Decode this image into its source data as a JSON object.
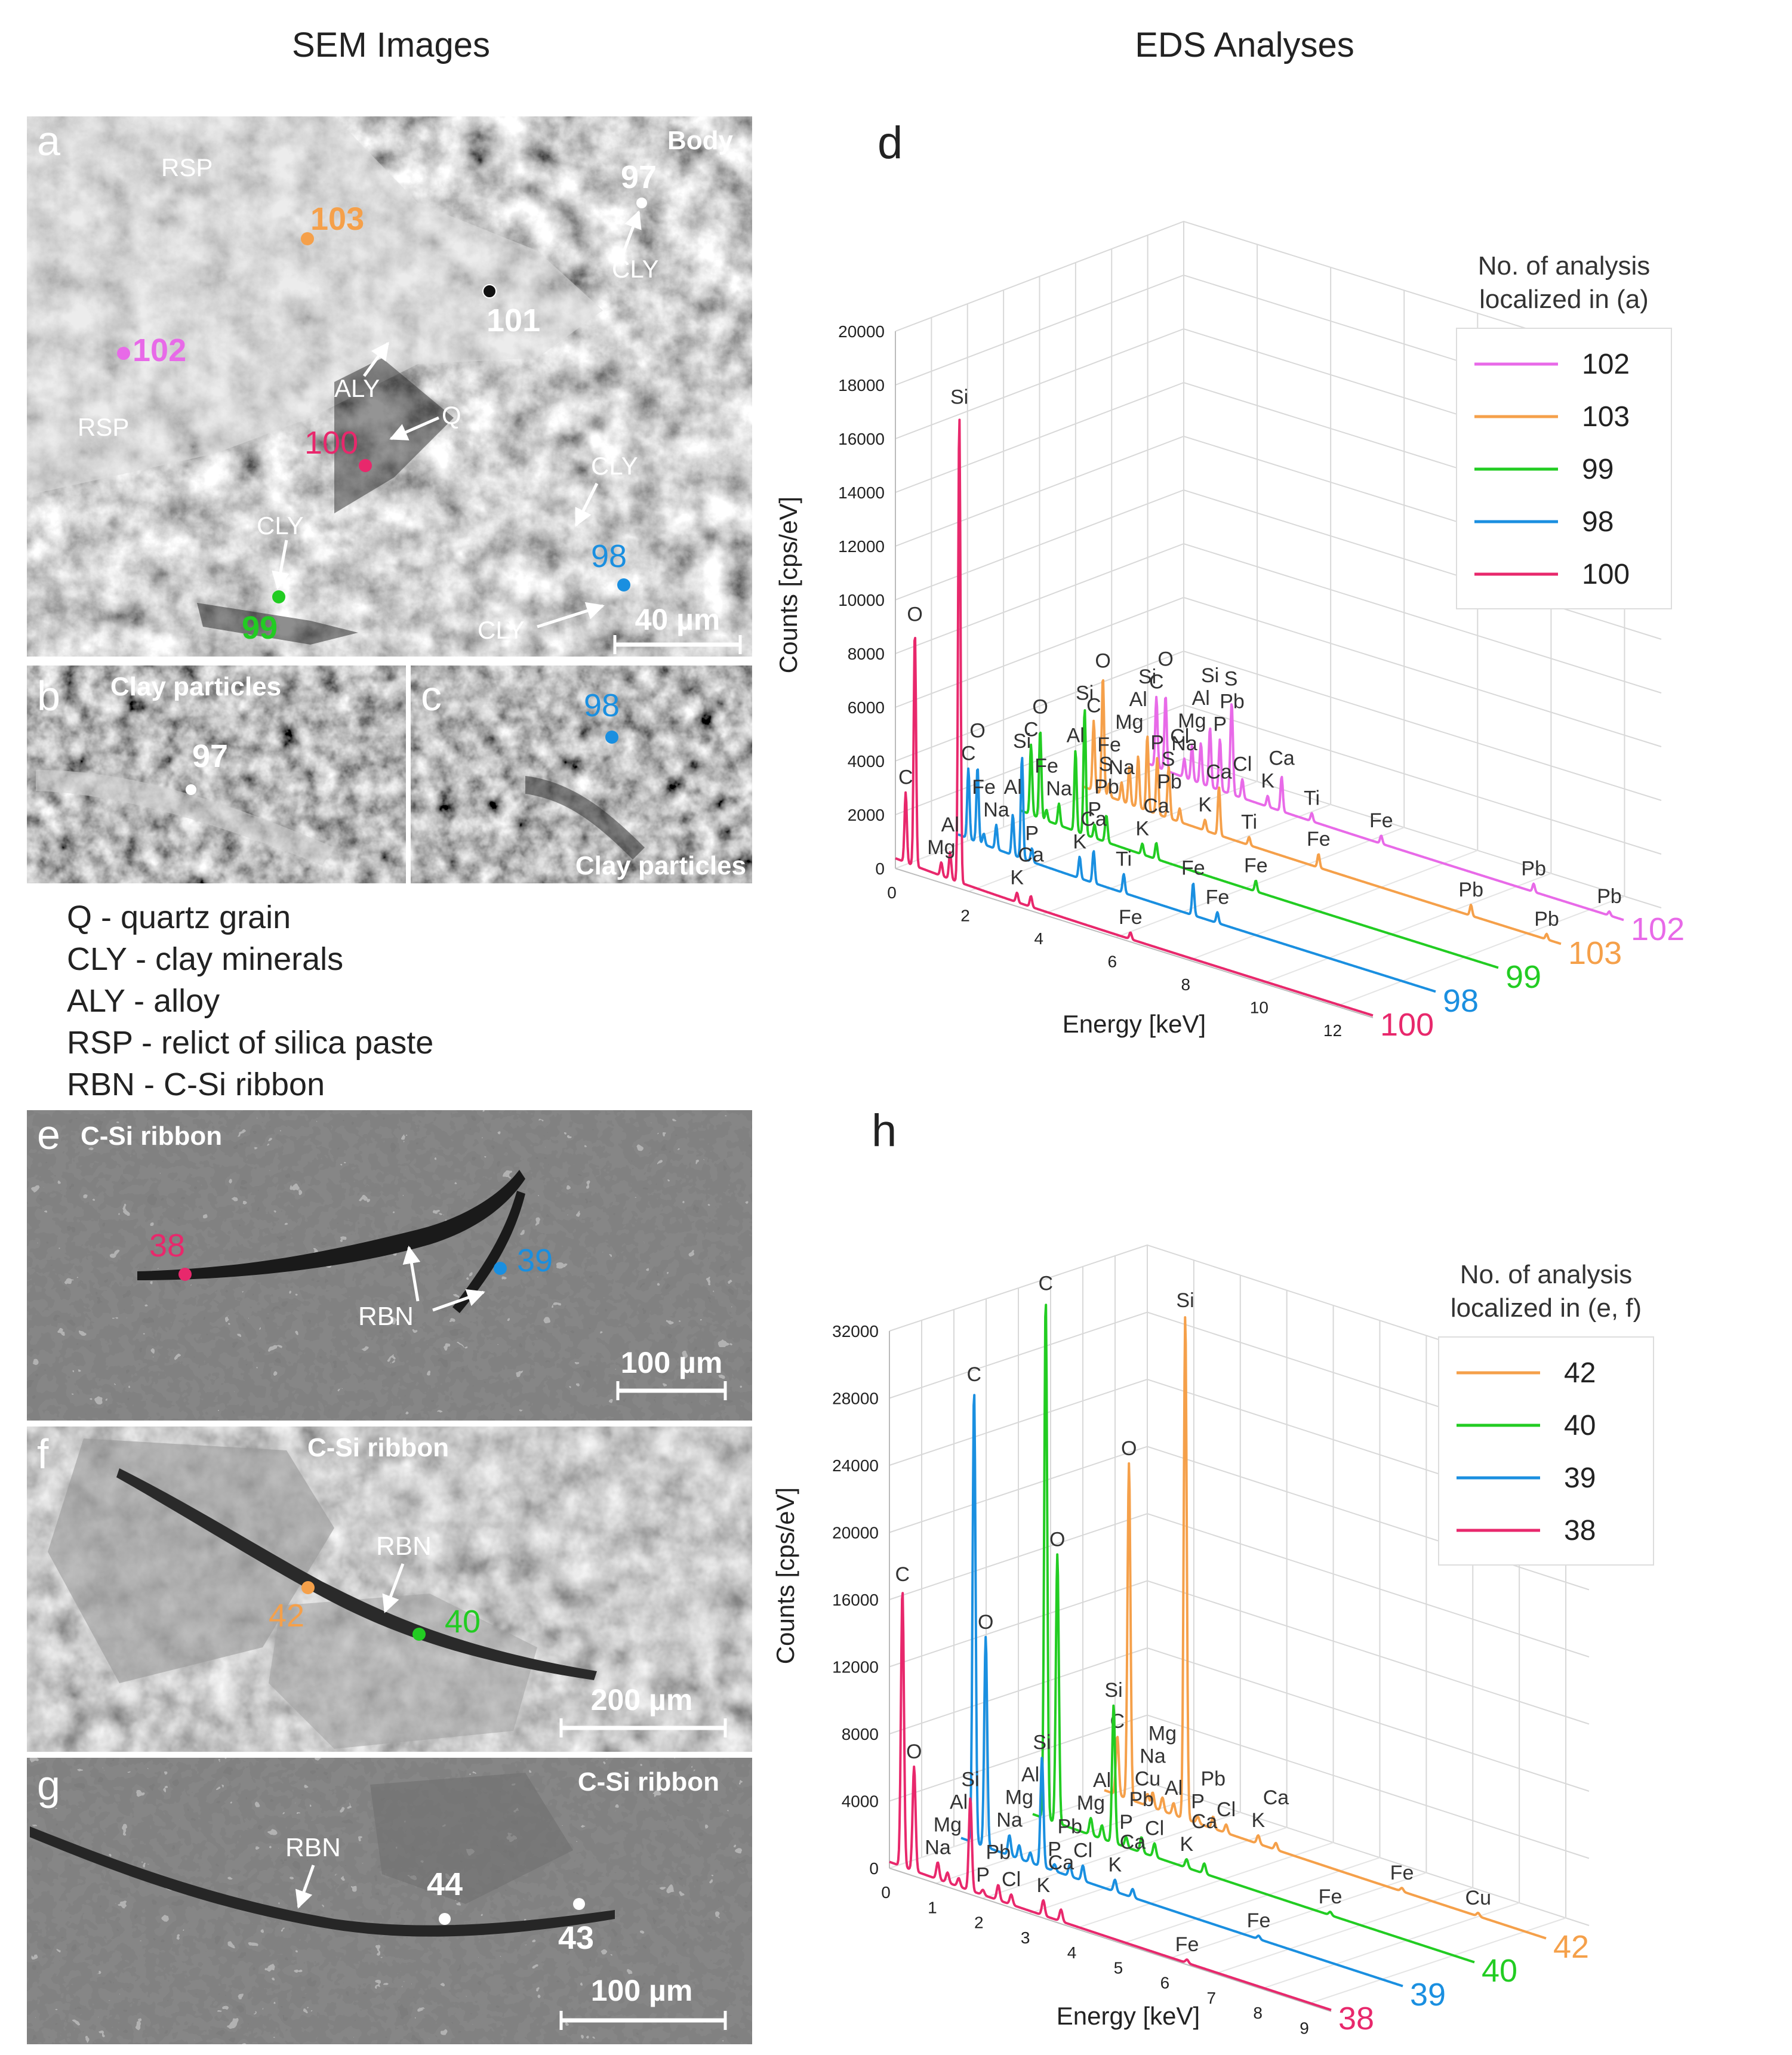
{
  "headings": {
    "sem": "SEM Images",
    "eds": "EDS Analyses"
  },
  "colors": {
    "s102": "#e86ae8",
    "s103": "#f5a04a",
    "s99": "#22cc22",
    "s98": "#1a8fe0",
    "s100": "#e8286c",
    "s42": "#f5a04a",
    "s40": "#22cc22",
    "s39": "#1a8fe0",
    "s38": "#e8286c",
    "pt_white": "#ffffff"
  },
  "panels": {
    "a": {
      "letter": "a",
      "title": "Body",
      "scale": "40 µm",
      "labels": {
        "rsp1": "RSP",
        "rsp2": "RSP",
        "aly": "ALY",
        "q": "Q",
        "cly1": "CLY",
        "cly2": "CLY",
        "cly3": "CLY",
        "cly4": "CLY"
      },
      "points": {
        "p103": "103",
        "p97": "97",
        "p101": "101",
        "p102": "102",
        "p100": "100",
        "p98": "98",
        "p99": "99"
      }
    },
    "b": {
      "letter": "b",
      "title": "Clay particles",
      "point": "97"
    },
    "c": {
      "letter": "c",
      "title": "Clay particles",
      "point": "98"
    },
    "e": {
      "letter": "e",
      "title": "C-Si ribbon",
      "scale": "100 µm",
      "rbn": "RBN",
      "p38": "38",
      "p39": "39"
    },
    "f": {
      "letter": "f",
      "title": "C-Si ribbon",
      "scale": "200 µm",
      "rbn": "RBN",
      "p42": "42",
      "p40": "40"
    },
    "g": {
      "letter": "g",
      "title": "C-Si ribbon",
      "scale": "100 µm",
      "rbn": "RBN",
      "p44": "44",
      "p43": "43"
    }
  },
  "abbreviations": [
    "Q - quartz grain",
    "CLY - clay minerals",
    "ALY - alloy",
    "RSP - relict of silica paste",
    "RBN - C-Si ribbon"
  ],
  "chart_data": [
    {
      "panel": "d",
      "type": "line",
      "title": "d",
      "xlabel": "Energy [keV]",
      "ylabel": "Counts [cps/eV]",
      "xlim": [
        0,
        13
      ],
      "ylim": [
        0,
        20000
      ],
      "x_ticks": [
        "0",
        "2",
        "4",
        "6",
        "8",
        "10",
        "12"
      ],
      "y_ticks": [
        "0",
        "2000",
        "4000",
        "6000",
        "8000",
        "10000",
        "12000",
        "14000",
        "16000",
        "18000",
        "20000"
      ],
      "legend_title": "No. of  analysis localized in (a)",
      "legend": [
        "102",
        "103",
        "99",
        "98",
        "100"
      ],
      "series": [
        {
          "name": "100",
          "color": "#e8286c",
          "peaks": [
            {
              "el": "C",
              "e": 0.28,
              "v": 2600
            },
            {
              "el": "O",
              "e": 0.53,
              "v": 8800
            },
            {
              "el": "Mg",
              "e": 1.25,
              "v": 500
            },
            {
              "el": "Al",
              "e": 1.49,
              "v": 1000
            },
            {
              "el": "Si",
              "e": 1.74,
              "v": 17500
            },
            {
              "el": "K",
              "e": 3.31,
              "v": 350
            },
            {
              "el": "Ca",
              "e": 3.69,
              "v": 400
            },
            {
              "el": "Fe",
              "e": 6.4,
              "v": 250
            }
          ]
        },
        {
          "name": "98",
          "color": "#1a8fe0",
          "peaks": [
            {
              "el": "C",
              "e": 0.28,
              "v": 2600
            },
            {
              "el": "O",
              "e": 0.53,
              "v": 2800
            },
            {
              "el": "Na",
              "e": 1.04,
              "v": 900
            },
            {
              "el": "Fe",
              "e": 0.7,
              "v": 400
            },
            {
              "el": "Al",
              "e": 1.49,
              "v": 1500
            },
            {
              "el": "Si",
              "e": 1.74,
              "v": 3800
            },
            {
              "el": "P",
              "e": 2.01,
              "v": 500
            },
            {
              "el": "K",
              "e": 3.31,
              "v": 800
            },
            {
              "el": "Ca",
              "e": 3.69,
              "v": 1200
            },
            {
              "el": "Ti",
              "e": 4.51,
              "v": 700
            },
            {
              "el": "Fe",
              "e": 6.4,
              "v": 1200
            },
            {
              "el": "Fe",
              "e": 7.06,
              "v": 400
            }
          ]
        },
        {
          "name": "99",
          "color": "#22cc22",
          "peaks": [
            {
              "el": "C",
              "e": 0.28,
              "v": 2600
            },
            {
              "el": "O",
              "e": 0.53,
              "v": 3300
            },
            {
              "el": "Na",
              "e": 1.04,
              "v": 800
            },
            {
              "el": "Fe",
              "e": 0.7,
              "v": 400
            },
            {
              "el": "Al",
              "e": 1.49,
              "v": 3000
            },
            {
              "el": "Si",
              "e": 1.74,
              "v": 4700
            },
            {
              "el": "P",
              "e": 2.01,
              "v": 500
            },
            {
              "el": "Pb",
              "e": 2.34,
              "v": 700
            },
            {
              "el": "S",
              "e": 2.31,
              "v": 400
            },
            {
              "el": "K",
              "e": 3.31,
              "v": 400
            },
            {
              "el": "Ca",
              "e": 3.69,
              "v": 600
            },
            {
              "el": "Fe",
              "e": 6.4,
              "v": 400
            }
          ]
        },
        {
          "name": "103",
          "color": "#f5a04a",
          "peaks": [
            {
              "el": "C",
              "e": 0.28,
              "v": 2600
            },
            {
              "el": "O",
              "e": 0.53,
              "v": 4400
            },
            {
              "el": "Na",
              "e": 1.04,
              "v": 700
            },
            {
              "el": "Fe",
              "e": 0.7,
              "v": 500
            },
            {
              "el": "Mg",
              "e": 1.25,
              "v": 1400
            },
            {
              "el": "Al",
              "e": 1.49,
              "v": 1900
            },
            {
              "el": "Si",
              "e": 1.74,
              "v": 2800
            },
            {
              "el": "P",
              "e": 2.01,
              "v": 2100
            },
            {
              "el": "Pb",
              "e": 2.34,
              "v": 800
            },
            {
              "el": "S",
              "e": 2.31,
              "v": 1300
            },
            {
              "el": "Cl",
              "e": 2.62,
              "v": 500
            },
            {
              "el": "K",
              "e": 3.31,
              "v": 400
            },
            {
              "el": "Ca",
              "e": 3.69,
              "v": 1800
            },
            {
              "el": "Ti",
              "e": 4.51,
              "v": 300
            },
            {
              "el": "Fe",
              "e": 6.4,
              "v": 500
            },
            {
              "el": "Pb",
              "e": 10.55,
              "v": 400
            },
            {
              "el": "Pb",
              "e": 12.61,
              "v": 200
            }
          ]
        },
        {
          "name": "102",
          "color": "#e86ae8",
          "peaks": [
            {
              "el": "C",
              "e": 0.28,
              "v": 2600
            },
            {
              "el": "O",
              "e": 0.53,
              "v": 2800
            },
            {
              "el": "Na",
              "e": 1.04,
              "v": 700
            },
            {
              "el": "Mg",
              "e": 1.25,
              "v": 1300
            },
            {
              "el": "Al",
              "e": 1.49,
              "v": 1500
            },
            {
              "el": "Si",
              "e": 1.74,
              "v": 2200
            },
            {
              "el": "P",
              "e": 2.01,
              "v": 1900
            },
            {
              "el": "Pb",
              "e": 2.34,
              "v": 2300
            },
            {
              "el": "S",
              "e": 2.31,
              "v": 1500
            },
            {
              "el": "Cl",
              "e": 2.62,
              "v": 700
            },
            {
              "el": "K",
              "e": 3.31,
              "v": 400
            },
            {
              "el": "Ca",
              "e": 3.69,
              "v": 1300
            },
            {
              "el": "Ti",
              "e": 4.51,
              "v": 300
            },
            {
              "el": "Fe",
              "e": 6.4,
              "v": 300
            },
            {
              "el": "Pb",
              "e": 10.55,
              "v": 300
            },
            {
              "el": "Pb",
              "e": 12.61,
              "v": 150
            }
          ]
        }
      ]
    },
    {
      "panel": "h",
      "type": "line",
      "title": "h",
      "xlabel": "Energy [keV]",
      "ylabel": "Counts [cps/eV]",
      "xlim": [
        0,
        9.5
      ],
      "ylim": [
        0,
        32000
      ],
      "x_ticks": [
        "0",
        "1",
        "2",
        "3",
        "4",
        "5",
        "6",
        "7",
        "8",
        "9"
      ],
      "y_ticks": [
        "0",
        "4000",
        "8000",
        "12000",
        "16000",
        "20000",
        "24000",
        "28000",
        "32000"
      ],
      "legend_title": "No. of  analysis localized in (e, f)",
      "legend": [
        "42",
        "40",
        "39",
        "38"
      ],
      "series": [
        {
          "name": "38",
          "color": "#e8286c",
          "peaks": [
            {
              "el": "C",
              "e": 0.28,
              "v": 16500
            },
            {
              "el": "O",
              "e": 0.53,
              "v": 6200
            },
            {
              "el": "Na",
              "e": 1.04,
              "v": 1000
            },
            {
              "el": "Mg",
              "e": 1.25,
              "v": 600
            },
            {
              "el": "Al",
              "e": 1.49,
              "v": 500
            },
            {
              "el": "Si",
              "e": 1.74,
              "v": 5500
            },
            {
              "el": "P",
              "e": 2.01,
              "v": 300
            },
            {
              "el": "Pb",
              "e": 2.34,
              "v": 900
            },
            {
              "el": "Cl",
              "e": 2.62,
              "v": 600
            },
            {
              "el": "K",
              "e": 3.31,
              "v": 900
            },
            {
              "el": "Ca",
              "e": 3.69,
              "v": 700
            },
            {
              "el": "Fe",
              "e": 6.4,
              "v": 200
            }
          ]
        },
        {
          "name": "39",
          "color": "#1a8fe0",
          "peaks": [
            {
              "el": "C",
              "e": 0.28,
              "v": 27000
            },
            {
              "el": "O",
              "e": 0.53,
              "v": 12500
            },
            {
              "el": "Na",
              "e": 1.04,
              "v": 1200
            },
            {
              "el": "Mg",
              "e": 1.25,
              "v": 800
            },
            {
              "el": "Al",
              "e": 1.49,
              "v": 600
            },
            {
              "el": "Si",
              "e": 1.74,
              "v": 6500
            },
            {
              "el": "P",
              "e": 2.01,
              "v": 400
            },
            {
              "el": "Pb",
              "e": 2.34,
              "v": 700
            },
            {
              "el": "Cl",
              "e": 2.62,
              "v": 900
            },
            {
              "el": "K",
              "e": 3.31,
              "v": 700
            },
            {
              "el": "Ca",
              "e": 3.69,
              "v": 500
            },
            {
              "el": "Fe",
              "e": 6.4,
              "v": 200
            }
          ]
        },
        {
          "name": "40",
          "color": "#22cc22",
          "peaks": [
            {
              "el": "C",
              "e": 0.28,
              "v": 31000
            },
            {
              "el": "O",
              "e": 0.53,
              "v": 16000
            },
            {
              "el": "Mg",
              "e": 1.25,
              "v": 1000
            },
            {
              "el": "Al",
              "e": 1.49,
              "v": 800
            },
            {
              "el": "Si",
              "e": 1.74,
              "v": 8200
            },
            {
              "el": "P",
              "e": 2.01,
              "v": 600
            },
            {
              "el": "Pb",
              "e": 2.34,
              "v": 900
            },
            {
              "el": "Cl",
              "e": 2.62,
              "v": 800
            },
            {
              "el": "K",
              "e": 3.31,
              "v": 500
            },
            {
              "el": "Ca",
              "e": 3.69,
              "v": 600
            },
            {
              "el": "Fe",
              "e": 6.4,
              "v": 200
            }
          ]
        },
        {
          "name": "42",
          "color": "#f5a04a",
          "peaks": [
            {
              "el": "C",
              "e": 0.28,
              "v": 3500
            },
            {
              "el": "O",
              "e": 0.53,
              "v": 20000
            },
            {
              "el": "Cu",
              "e": 0.93,
              "v": 700
            },
            {
              "el": "Na",
              "e": 1.04,
              "v": 900
            },
            {
              "el": "Mg",
              "e": 1.25,
              "v": 800
            },
            {
              "el": "Al",
              "e": 1.49,
              "v": 700
            },
            {
              "el": "Si",
              "e": 1.74,
              "v": 30000
            },
            {
              "el": "P",
              "e": 2.01,
              "v": 400
            },
            {
              "el": "Pb",
              "e": 2.34,
              "v": 700
            },
            {
              "el": "Cl",
              "e": 2.62,
              "v": 500
            },
            {
              "el": "K",
              "e": 3.31,
              "v": 500
            },
            {
              "el": "Ca",
              "e": 3.69,
              "v": 400
            },
            {
              "el": "Fe",
              "e": 6.4,
              "v": 200
            },
            {
              "el": "Cu",
              "e": 8.04,
              "v": 200
            }
          ]
        }
      ]
    }
  ]
}
